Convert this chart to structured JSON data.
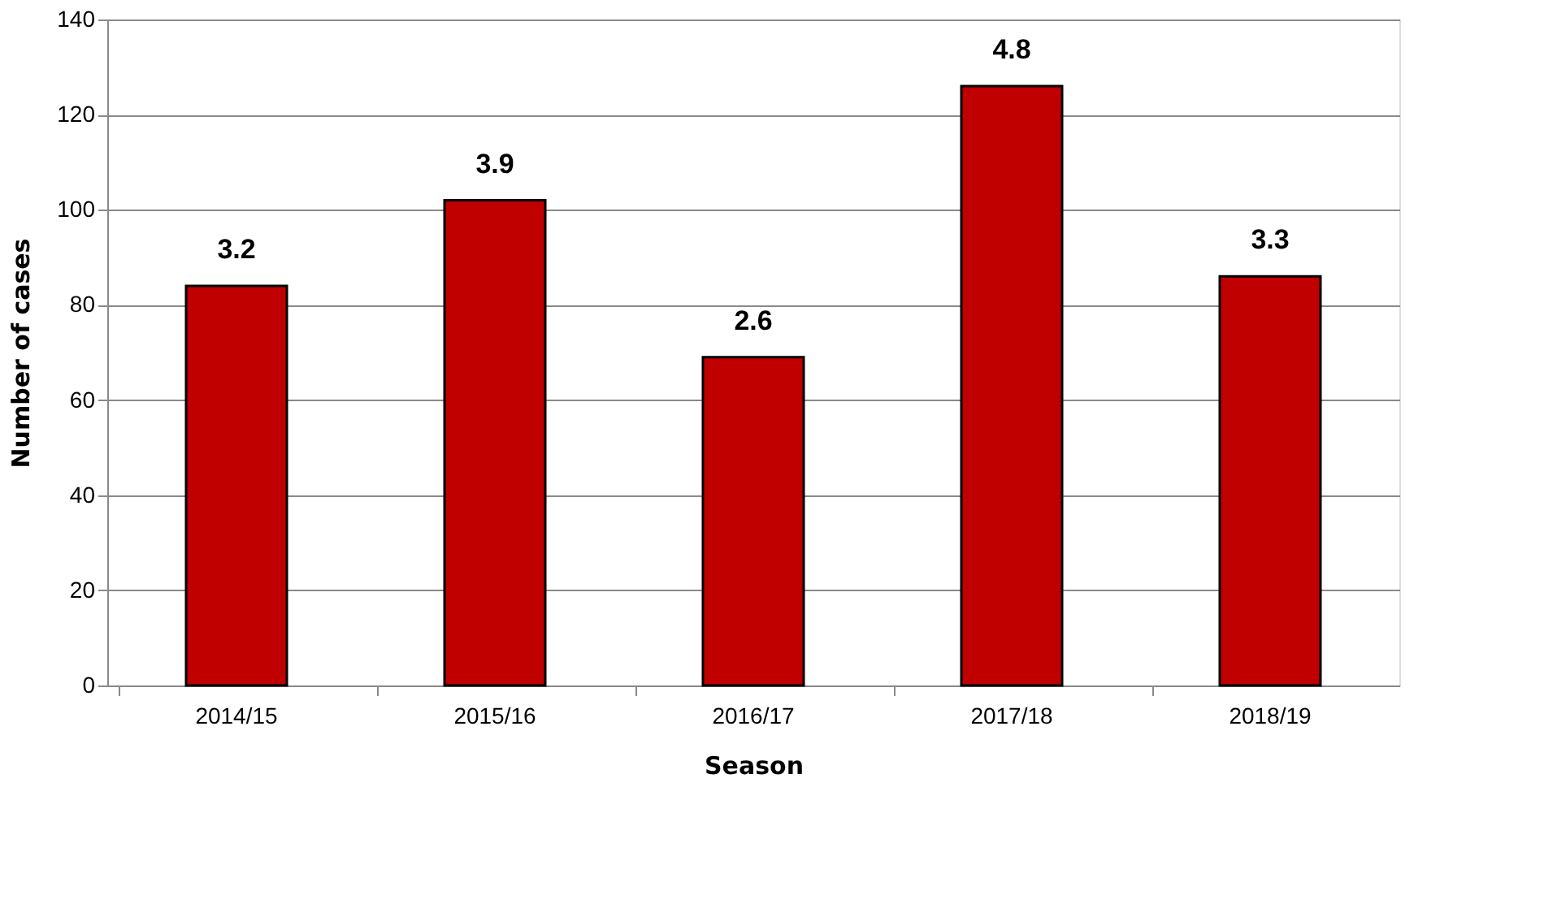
{
  "chart_data": {
    "type": "bar",
    "xlabel": "Season",
    "ylabel": "Number of cases",
    "categories": [
      "2014/15",
      "2015/16",
      "2016/17",
      "2017/18",
      "2018/19"
    ],
    "values": [
      84,
      102,
      69,
      126,
      86
    ],
    "annotations": [
      {
        "text": "3.2",
        "x": "2014/15",
        "y": 84
      },
      {
        "text": "3.9",
        "x": "2015/16",
        "y": 102
      },
      {
        "text": "2.6",
        "x": "2016/17",
        "y": 69
      },
      {
        "text": "4.8",
        "x": "2017/18",
        "y": 126
      },
      {
        "text": "3.3",
        "x": "2018/19",
        "y": 86
      }
    ],
    "color": "#c00000",
    "ylim": [
      0,
      140
    ],
    "yticks": [
      0,
      20,
      40,
      60,
      80,
      100,
      120,
      140
    ],
    "grid": "y"
  }
}
